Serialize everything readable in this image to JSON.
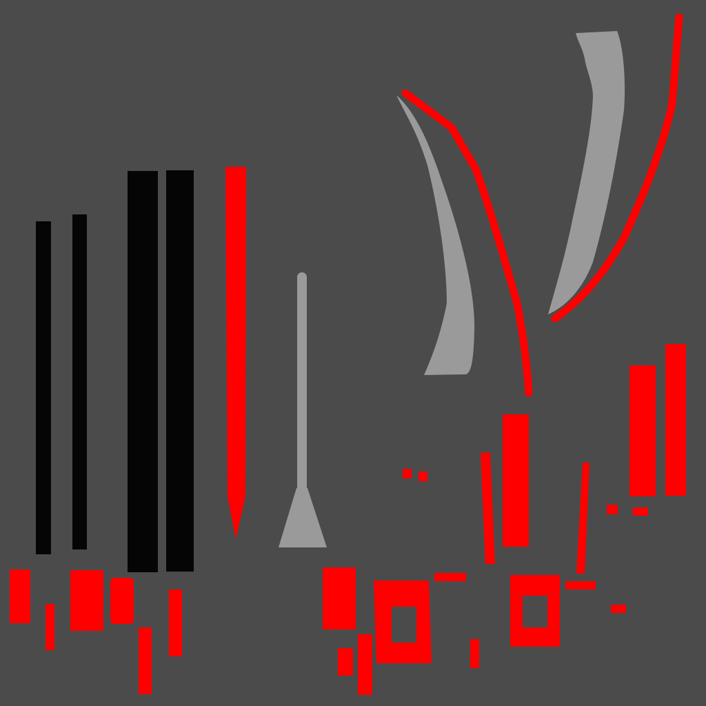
{
  "texture_atlas": {
    "background_color": "#4b4b4b",
    "colors": {
      "black": "#050505",
      "red": "#ff0000",
      "gray": "#9a9a9a"
    }
  }
}
